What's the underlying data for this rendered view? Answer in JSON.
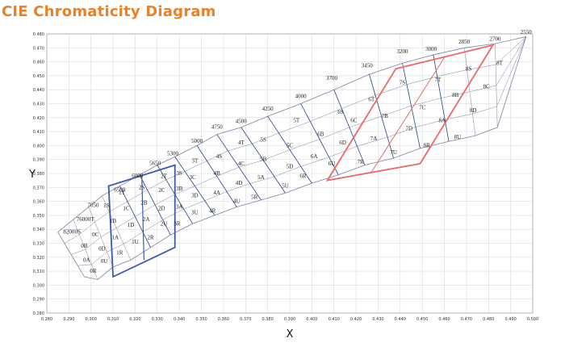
{
  "title": "CIE Chromaticity Diagram",
  "chart_data": {
    "type": "scatter",
    "title": "CIE Chromaticity Diagram",
    "xlabel": "X",
    "ylabel": "Y",
    "xlim": [
      0.28,
      0.5
    ],
    "ylim": [
      0.28,
      0.48
    ],
    "grid": true,
    "x_ticks": [
      "0.280",
      "0.290",
      "0.300",
      "0.310",
      "0.320",
      "0.330",
      "0.340",
      "0.350",
      "0.360",
      "0.370",
      "0.380",
      "0.390",
      "0.400",
      "0.410",
      "0.420",
      "0.430",
      "0.440",
      "0.450",
      "0.460",
      "0.470",
      "0.480",
      "0.490",
      "0.500"
    ],
    "y_ticks": [
      "0.280",
      "0.290",
      "0.300",
      "0.310",
      "0.320",
      "0.330",
      "0.340",
      "0.350",
      "0.360",
      "0.370",
      "0.380",
      "0.390",
      "0.400",
      "0.410",
      "0.420",
      "0.430",
      "0.440",
      "0.450",
      "0.460",
      "0.470",
      "0.480"
    ],
    "cct_labels": [
      {
        "text": "8200",
        "x": 0.29,
        "y": 0.337
      },
      {
        "text": "7600",
        "x": 0.296,
        "y": 0.346
      },
      {
        "text": "7050",
        "x": 0.301,
        "y": 0.356
      },
      {
        "text": "6500",
        "x": 0.313,
        "y": 0.367
      },
      {
        "text": "6000",
        "x": 0.321,
        "y": 0.377
      },
      {
        "text": "5650",
        "x": 0.329,
        "y": 0.386
      },
      {
        "text": "5300",
        "x": 0.337,
        "y": 0.393
      },
      {
        "text": "5000",
        "x": 0.348,
        "y": 0.402
      },
      {
        "text": "4750",
        "x": 0.357,
        "y": 0.412
      },
      {
        "text": "4500",
        "x": 0.368,
        "y": 0.416
      },
      {
        "text": "4250",
        "x": 0.38,
        "y": 0.425
      },
      {
        "text": "4000",
        "x": 0.395,
        "y": 0.434
      },
      {
        "text": "3700",
        "x": 0.409,
        "y": 0.447
      },
      {
        "text": "3450",
        "x": 0.425,
        "y": 0.456
      },
      {
        "text": "3200",
        "x": 0.441,
        "y": 0.466
      },
      {
        "text": "3000",
        "x": 0.454,
        "y": 0.468
      },
      {
        "text": "2850",
        "x": 0.469,
        "y": 0.473
      },
      {
        "text": "2700",
        "x": 0.483,
        "y": 0.475
      },
      {
        "text": "2550",
        "x": 0.497,
        "y": 0.48
      }
    ],
    "bin_labels": [
      {
        "text": "0T",
        "x": 0.3,
        "y": 0.347
      },
      {
        "text": "0S",
        "x": 0.294,
        "y": 0.338
      },
      {
        "text": "0C",
        "x": 0.302,
        "y": 0.336
      },
      {
        "text": "0B",
        "x": 0.297,
        "y": 0.328
      },
      {
        "text": "0D",
        "x": 0.305,
        "y": 0.326
      },
      {
        "text": "0A",
        "x": 0.298,
        "y": 0.318
      },
      {
        "text": "0U",
        "x": 0.306,
        "y": 0.317
      },
      {
        "text": "0R",
        "x": 0.301,
        "y": 0.31
      },
      {
        "text": "1S",
        "x": 0.307,
        "y": 0.357
      },
      {
        "text": "1T",
        "x": 0.314,
        "y": 0.366
      },
      {
        "text": "1B",
        "x": 0.31,
        "y": 0.346
      },
      {
        "text": "1C",
        "x": 0.316,
        "y": 0.355
      },
      {
        "text": "1A",
        "x": 0.311,
        "y": 0.334
      },
      {
        "text": "1D",
        "x": 0.318,
        "y": 0.343
      },
      {
        "text": "1U",
        "x": 0.32,
        "y": 0.331
      },
      {
        "text": "1R",
        "x": 0.313,
        "y": 0.323
      },
      {
        "text": "2S",
        "x": 0.323,
        "y": 0.37
      },
      {
        "text": "2T",
        "x": 0.333,
        "y": 0.378
      },
      {
        "text": "2B",
        "x": 0.324,
        "y": 0.359
      },
      {
        "text": "2C",
        "x": 0.332,
        "y": 0.368
      },
      {
        "text": "2A",
        "x": 0.325,
        "y": 0.347
      },
      {
        "text": "2D",
        "x": 0.332,
        "y": 0.355
      },
      {
        "text": "2R",
        "x": 0.327,
        "y": 0.334
      },
      {
        "text": "2U",
        "x": 0.333,
        "y": 0.344
      },
      {
        "text": "3T",
        "x": 0.347,
        "y": 0.389
      },
      {
        "text": "3S",
        "x": 0.34,
        "y": 0.38
      },
      {
        "text": "3C",
        "x": 0.346,
        "y": 0.377
      },
      {
        "text": "3B",
        "x": 0.34,
        "y": 0.369
      },
      {
        "text": "3D",
        "x": 0.347,
        "y": 0.364
      },
      {
        "text": "3A",
        "x": 0.34,
        "y": 0.356
      },
      {
        "text": "3U",
        "x": 0.347,
        "y": 0.352
      },
      {
        "text": "3R",
        "x": 0.339,
        "y": 0.344
      },
      {
        "text": "4T",
        "x": 0.368,
        "y": 0.402
      },
      {
        "text": "4S",
        "x": 0.358,
        "y": 0.392
      },
      {
        "text": "4C",
        "x": 0.368,
        "y": 0.387
      },
      {
        "text": "4B",
        "x": 0.357,
        "y": 0.38
      },
      {
        "text": "4D",
        "x": 0.367,
        "y": 0.373
      },
      {
        "text": "4A",
        "x": 0.357,
        "y": 0.366
      },
      {
        "text": "4U",
        "x": 0.366,
        "y": 0.36
      },
      {
        "text": "4R",
        "x": 0.355,
        "y": 0.353
      },
      {
        "text": "5S",
        "x": 0.378,
        "y": 0.404
      },
      {
        "text": "5T",
        "x": 0.393,
        "y": 0.418
      },
      {
        "text": "5B",
        "x": 0.378,
        "y": 0.39
      },
      {
        "text": "5C",
        "x": 0.39,
        "y": 0.4
      },
      {
        "text": "5A",
        "x": 0.377,
        "y": 0.377
      },
      {
        "text": "5D",
        "x": 0.39,
        "y": 0.385
      },
      {
        "text": "5R",
        "x": 0.374,
        "y": 0.363
      },
      {
        "text": "5U",
        "x": 0.388,
        "y": 0.371
      },
      {
        "text": "6S",
        "x": 0.413,
        "y": 0.424
      },
      {
        "text": "6T",
        "x": 0.427,
        "y": 0.433
      },
      {
        "text": "6B",
        "x": 0.404,
        "y": 0.408
      },
      {
        "text": "6C",
        "x": 0.419,
        "y": 0.418
      },
      {
        "text": "6A",
        "x": 0.401,
        "y": 0.392
      },
      {
        "text": "6D",
        "x": 0.414,
        "y": 0.402
      },
      {
        "text": "6R",
        "x": 0.396,
        "y": 0.378
      },
      {
        "text": "6U",
        "x": 0.409,
        "y": 0.387
      },
      {
        "text": "7S",
        "x": 0.441,
        "y": 0.445
      },
      {
        "text": "7T",
        "x": 0.457,
        "y": 0.447
      },
      {
        "text": "7B",
        "x": 0.433,
        "y": 0.421
      },
      {
        "text": "7C",
        "x": 0.45,
        "y": 0.427
      },
      {
        "text": "7A",
        "x": 0.428,
        "y": 0.405
      },
      {
        "text": "7D",
        "x": 0.444,
        "y": 0.412
      },
      {
        "text": "7R",
        "x": 0.422,
        "y": 0.388
      },
      {
        "text": "7U",
        "x": 0.437,
        "y": 0.395
      },
      {
        "text": "8S",
        "x": 0.471,
        "y": 0.455
      },
      {
        "text": "8T",
        "x": 0.485,
        "y": 0.459
      },
      {
        "text": "8B",
        "x": 0.465,
        "y": 0.436
      },
      {
        "text": "8C",
        "x": 0.479,
        "y": 0.442
      },
      {
        "text": "8A",
        "x": 0.459,
        "y": 0.418
      },
      {
        "text": "8D",
        "x": 0.473,
        "y": 0.425
      },
      {
        "text": "8R",
        "x": 0.452,
        "y": 0.4
      },
      {
        "text": "8U",
        "x": 0.466,
        "y": 0.406
      }
    ]
  },
  "colors": {
    "title": "#e8822a",
    "grid": "#cccccc",
    "outline": "#8080a0",
    "bin_line": "#2a4a8f",
    "highlight_blue": "#3a5bab",
    "highlight_red": "#e86a6a"
  }
}
